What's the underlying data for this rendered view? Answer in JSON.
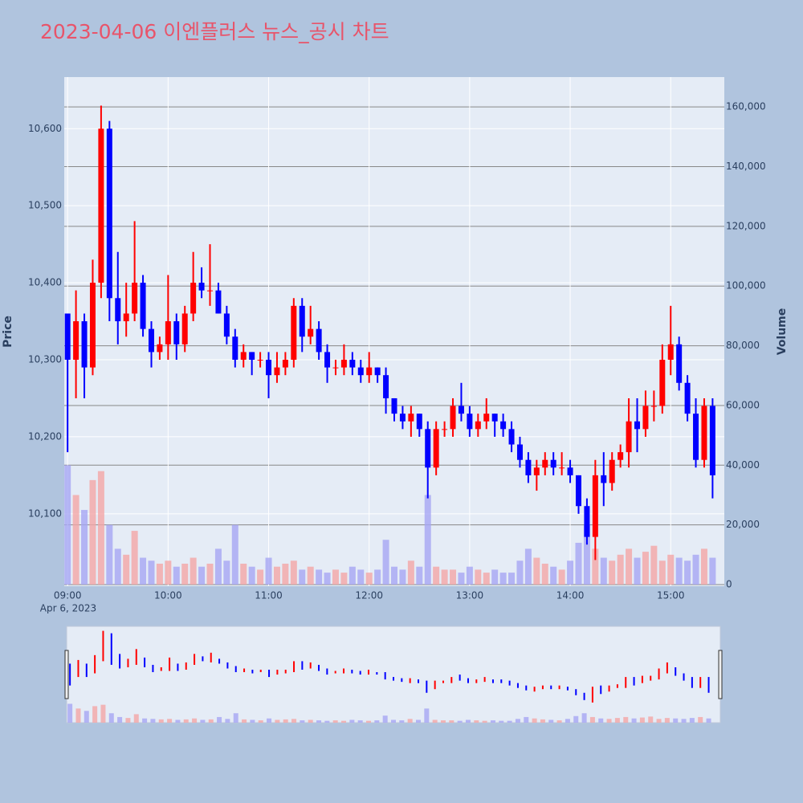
{
  "chart_data": {
    "type": "candlestick",
    "title": "2023-04-06 이엔플러스 뉴스_공시 차트",
    "x_date_label": "Apr 6, 2023",
    "y_label": "Price",
    "y2_label": "Volume",
    "increasing_color": "#ff0000",
    "decreasing_color": "#0000ff",
    "increasing_volume_color": "#f4a6a6",
    "decreasing_volume_color": "#a6a6f4",
    "grid": true,
    "x": [
      "09:00",
      "09:05",
      "09:10",
      "09:15",
      "09:20",
      "09:25",
      "09:30",
      "09:35",
      "09:40",
      "09:45",
      "09:50",
      "09:55",
      "10:00",
      "10:05",
      "10:10",
      "10:15",
      "10:20",
      "10:25",
      "10:30",
      "10:35",
      "10:40",
      "10:45",
      "10:50",
      "10:55",
      "11:00",
      "11:05",
      "11:10",
      "11:15",
      "11:20",
      "11:25",
      "11:30",
      "11:35",
      "11:40",
      "11:45",
      "11:50",
      "11:55",
      "12:00",
      "12:05",
      "12:10",
      "12:15",
      "12:20",
      "12:25",
      "12:30",
      "12:35",
      "12:40",
      "12:45",
      "12:50",
      "12:55",
      "13:00",
      "13:05",
      "13:10",
      "13:15",
      "13:20",
      "13:25",
      "13:30",
      "13:35",
      "13:40",
      "13:45",
      "13:50",
      "13:55",
      "14:00",
      "14:05",
      "14:10",
      "14:15",
      "14:20",
      "14:25",
      "14:30",
      "14:35",
      "14:40",
      "14:45",
      "14:50",
      "14:55",
      "15:00",
      "15:05",
      "15:10",
      "15:15",
      "15:20",
      "15:25"
    ],
    "open": [
      10360,
      10300,
      10350,
      10290,
      10400,
      10600,
      10380,
      10350,
      10360,
      10400,
      10340,
      10310,
      10320,
      10350,
      10320,
      10360,
      10400,
      10390,
      10390,
      10360,
      10330,
      10300,
      10310,
      10300,
      10300,
      10280,
      10290,
      10300,
      10370,
      10330,
      10340,
      10310,
      10290,
      10290,
      10300,
      10290,
      10280,
      10290,
      10280,
      10250,
      10230,
      10220,
      10230,
      10210,
      10160,
      10210,
      10210,
      10240,
      10230,
      10210,
      10220,
      10230,
      10220,
      10210,
      10190,
      10170,
      10150,
      10160,
      10170,
      10160,
      10160,
      10150,
      10110,
      10070,
      10150,
      10140,
      10170,
      10180,
      10220,
      10210,
      10240,
      10240,
      10300,
      10320,
      10270,
      10230,
      10170,
      10240
    ],
    "high": [
      10360,
      10390,
      10360,
      10430,
      10630,
      10610,
      10440,
      10400,
      10480,
      10410,
      10350,
      10330,
      10410,
      10360,
      10370,
      10440,
      10420,
      10450,
      10400,
      10370,
      10340,
      10320,
      10310,
      10310,
      10310,
      10310,
      10310,
      10380,
      10380,
      10370,
      10350,
      10320,
      10300,
      10320,
      10310,
      10300,
      10310,
      10290,
      10290,
      10250,
      10240,
      10240,
      10230,
      10220,
      10220,
      10220,
      10250,
      10270,
      10240,
      10230,
      10250,
      10230,
      10230,
      10220,
      10200,
      10180,
      10170,
      10180,
      10180,
      10180,
      10170,
      10150,
      10120,
      10170,
      10180,
      10180,
      10190,
      10250,
      10250,
      10260,
      10260,
      10320,
      10370,
      10330,
      10280,
      10250,
      10250,
      10250
    ],
    "low": [
      10180,
      10250,
      10250,
      10280,
      10380,
      10350,
      10320,
      10330,
      10350,
      10330,
      10290,
      10300,
      10300,
      10300,
      10310,
      10350,
      10380,
      10370,
      10360,
      10320,
      10290,
      10290,
      10280,
      10290,
      10250,
      10270,
      10280,
      10290,
      10310,
      10320,
      10300,
      10270,
      10280,
      10280,
      10280,
      10270,
      10270,
      10270,
      10230,
      10220,
      10210,
      10200,
      10200,
      10120,
      10150,
      10200,
      10200,
      10220,
      10200,
      10200,
      10210,
      10200,
      10200,
      10180,
      10160,
      10140,
      10130,
      10150,
      10150,
      10150,
      10140,
      10100,
      10060,
      10040,
      10110,
      10130,
      10160,
      10160,
      10180,
      10200,
      10220,
      10230,
      10280,
      10260,
      10220,
      10160,
      10160,
      10120
    ],
    "close": [
      10300,
      10350,
      10290,
      10400,
      10600,
      10380,
      10350,
      10360,
      10400,
      10340,
      10310,
      10320,
      10350,
      10320,
      10360,
      10400,
      10390,
      10390,
      10360,
      10330,
      10300,
      10310,
      10300,
      10300,
      10280,
      10290,
      10300,
      10370,
      10330,
      10340,
      10310,
      10290,
      10290,
      10300,
      10290,
      10280,
      10290,
      10280,
      10250,
      10230,
      10220,
      10230,
      10210,
      10160,
      10210,
      10210,
      10240,
      10230,
      10210,
      10220,
      10230,
      10220,
      10210,
      10190,
      10170,
      10150,
      10160,
      10170,
      10160,
      10160,
      10150,
      10110,
      10070,
      10150,
      10140,
      10170,
      10180,
      10220,
      10210,
      10240,
      10240,
      10300,
      10320,
      10270,
      10230,
      10170,
      10240,
      10150
    ],
    "volume": [
      40000,
      30000,
      25000,
      35000,
      38000,
      20000,
      12000,
      10000,
      18000,
      9000,
      8000,
      7000,
      8000,
      6000,
      7000,
      9000,
      6000,
      7000,
      12000,
      8000,
      20000,
      7000,
      6000,
      5000,
      9000,
      6000,
      7000,
      8000,
      5000,
      6000,
      5000,
      4000,
      5000,
      4000,
      6000,
      5000,
      4000,
      5000,
      15000,
      6000,
      5000,
      8000,
      6000,
      30000,
      6000,
      5000,
      5000,
      4000,
      6000,
      5000,
      4000,
      5000,
      4000,
      4000,
      8000,
      12000,
      9000,
      7000,
      6000,
      5000,
      8000,
      14000,
      20000,
      12000,
      9000,
      8000,
      10000,
      12000,
      9000,
      11000,
      13000,
      8000,
      10000,
      9000,
      8000,
      10000,
      12000,
      9000
    ],
    "xlim": [
      "08:58",
      "15:32"
    ],
    "xticks": [
      "09:00",
      "10:00",
      "11:00",
      "12:00",
      "13:00",
      "14:00",
      "15:00"
    ],
    "ylim": [
      10006,
      10667
    ],
    "yticks": [
      {
        "value": 10100,
        "label": "10,100"
      },
      {
        "value": 10200,
        "label": "10,200"
      },
      {
        "value": 10300,
        "label": "10,300"
      },
      {
        "value": 10400,
        "label": "10,400"
      },
      {
        "value": 10500,
        "label": "10,500"
      },
      {
        "value": 10600,
        "label": "10,600"
      }
    ],
    "y2lim": [
      0,
      170000
    ],
    "y2ticks": [
      0,
      {
        "value": 20000,
        "label": "20,000"
      },
      {
        "value": 40000,
        "label": "40,000"
      },
      {
        "value": 60000,
        "label": "60,000"
      },
      {
        "value": 80000,
        "label": "80,000"
      },
      {
        "value": 100000,
        "label": "100,000"
      },
      {
        "value": 120000,
        "label": "120,000"
      },
      {
        "value": 140000,
        "label": "140,000"
      },
      {
        "value": 160000,
        "label": "160,000"
      }
    ]
  }
}
